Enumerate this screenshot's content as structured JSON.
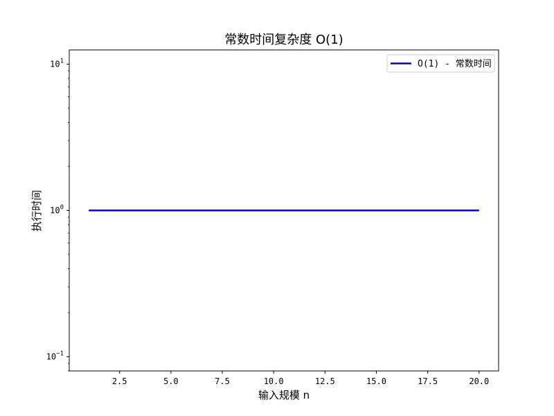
{
  "chart_data": {
    "type": "line",
    "title": "常数时间复杂度 O(1)",
    "xlabel": "输入规模 n",
    "ylabel": "执行时间",
    "xlim": [
      0.05,
      20.95
    ],
    "ylim": [
      0.08,
      12.5
    ],
    "yscale": "log",
    "x_ticks": [
      2.5,
      5.0,
      7.5,
      10.0,
      12.5,
      15.0,
      17.5,
      20.0
    ],
    "x_tick_labels": [
      "2.5",
      "5.0",
      "7.5",
      "10.0",
      "12.5",
      "15.0",
      "17.5",
      "20.0"
    ],
    "y_major_ticks": [
      {
        "value": 0.1,
        "base": "10",
        "exp": "−1"
      },
      {
        "value": 1,
        "base": "10",
        "exp": "0"
      },
      {
        "value": 10,
        "base": "10",
        "exp": "1"
      }
    ],
    "grid": false,
    "legend_position": "top-right",
    "series": [
      {
        "name": "O(1) - 常数时间",
        "color": "#0000cc",
        "x": [
          1,
          2,
          3,
          4,
          5,
          6,
          7,
          8,
          9,
          10,
          11,
          12,
          13,
          14,
          15,
          16,
          17,
          18,
          19,
          20
        ],
        "y": [
          1,
          1,
          1,
          1,
          1,
          1,
          1,
          1,
          1,
          1,
          1,
          1,
          1,
          1,
          1,
          1,
          1,
          1,
          1,
          1
        ]
      }
    ]
  }
}
